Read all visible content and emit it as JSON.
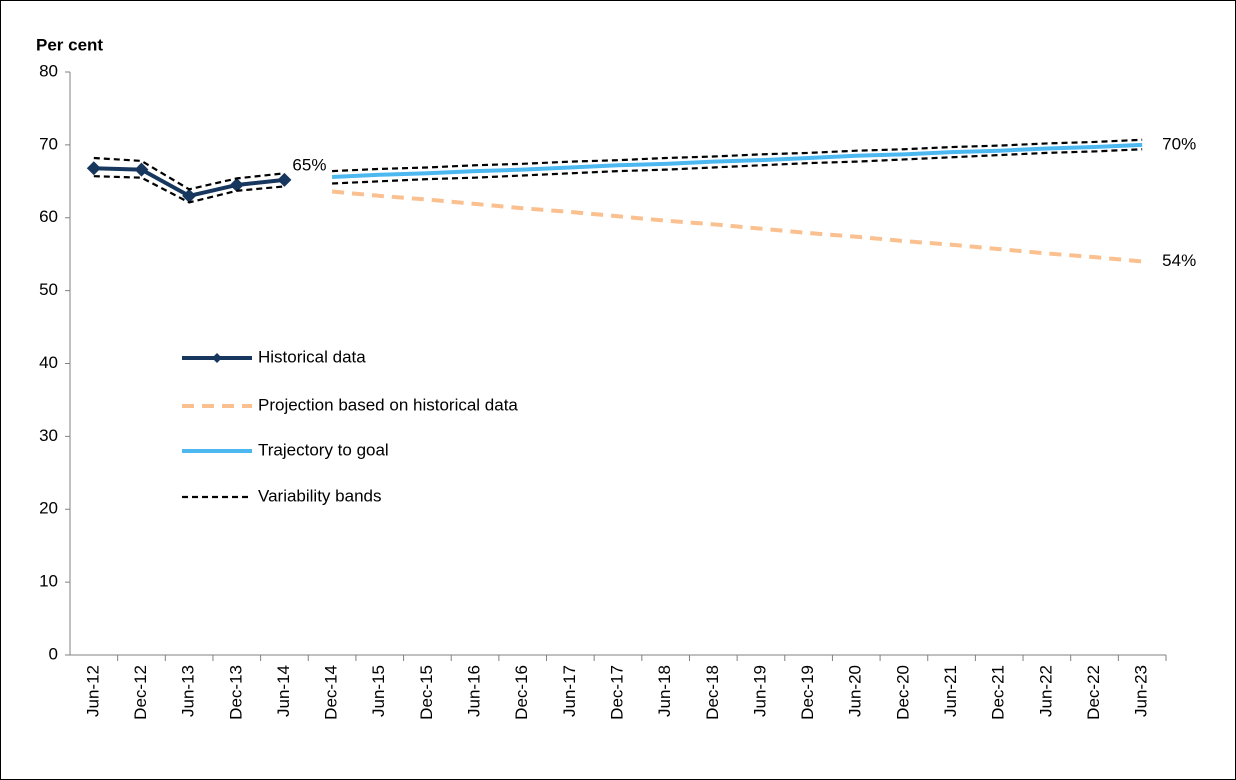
{
  "chart_data": {
    "type": "line",
    "y_label": "Per cent",
    "categories": [
      "Jun-12",
      "Dec-12",
      "Jun-13",
      "Dec-13",
      "Jun-14",
      "Dec-14",
      "Jun-15",
      "Dec-15",
      "Jun-16",
      "Dec-16",
      "Jun-17",
      "Dec-17",
      "Jun-18",
      "Dec-18",
      "Jun-19",
      "Dec-19",
      "Jun-20",
      "Dec-20",
      "Jun-21",
      "Dec-21",
      "Jun-22",
      "Dec-22",
      "Jun-23"
    ],
    "ylim": [
      0,
      80
    ],
    "yticks": [
      0,
      10,
      20,
      30,
      40,
      50,
      60,
      70,
      80
    ],
    "grid": false,
    "series": [
      {
        "name": "Historical data",
        "color": "#17375e",
        "style": "solid",
        "marker": "diamond",
        "values": [
          66.8,
          66.6,
          63.0,
          64.5,
          65.2,
          null,
          null,
          null,
          null,
          null,
          null,
          null,
          null,
          null,
          null,
          null,
          null,
          null,
          null,
          null,
          null,
          null,
          null
        ],
        "value_labels": [
          null,
          null,
          null,
          null,
          "65%",
          null,
          null,
          null,
          null,
          null,
          null,
          null,
          null,
          null,
          null,
          null,
          null,
          null,
          null,
          null,
          null,
          null,
          null
        ]
      },
      {
        "name": "Projection based on historical data",
        "color": "#fac08f",
        "style": "dash",
        "values": [
          null,
          null,
          null,
          null,
          null,
          63.6,
          63.0,
          62.5,
          61.9,
          61.3,
          60.8,
          60.2,
          59.6,
          59.1,
          58.5,
          57.9,
          57.4,
          56.8,
          56.3,
          55.7,
          55.1,
          54.6,
          54.0
        ],
        "value_labels": [
          null,
          null,
          null,
          null,
          null,
          null,
          null,
          null,
          null,
          null,
          null,
          null,
          null,
          null,
          null,
          null,
          null,
          null,
          null,
          null,
          null,
          null,
          "54%"
        ]
      },
      {
        "name": "Trajectory to goal",
        "color": "#4db8f0",
        "style": "solid",
        "values": [
          null,
          null,
          null,
          null,
          null,
          65.6,
          65.9,
          66.1,
          66.4,
          66.6,
          66.9,
          67.2,
          67.4,
          67.7,
          67.9,
          68.2,
          68.5,
          68.7,
          69.0,
          69.2,
          69.5,
          69.7,
          70.0
        ],
        "value_labels": [
          null,
          null,
          null,
          null,
          null,
          null,
          null,
          null,
          null,
          null,
          null,
          null,
          null,
          null,
          null,
          null,
          null,
          null,
          null,
          null,
          null,
          null,
          "70%"
        ]
      },
      {
        "name": "Variability bands",
        "color": "#000000",
        "style": "band",
        "lines": [
          [
            68.2,
            67.8,
            63.9,
            65.4,
            66.1,
            null,
            null,
            null,
            null,
            null,
            null,
            null,
            null,
            null,
            null,
            null,
            null,
            null,
            null,
            null,
            null,
            null,
            null
          ],
          [
            65.7,
            65.5,
            62.1,
            63.7,
            64.3,
            null,
            null,
            null,
            null,
            null,
            null,
            null,
            null,
            null,
            null,
            null,
            null,
            null,
            null,
            null,
            null,
            null,
            null
          ],
          [
            null,
            null,
            null,
            null,
            null,
            66.4,
            66.7,
            66.9,
            67.2,
            67.4,
            67.7,
            67.9,
            68.2,
            68.4,
            68.7,
            68.9,
            69.2,
            69.4,
            69.7,
            69.9,
            70.2,
            70.4,
            70.7
          ],
          [
            null,
            null,
            null,
            null,
            null,
            64.7,
            65.0,
            65.3,
            65.5,
            65.8,
            66.1,
            66.4,
            66.6,
            66.9,
            67.2,
            67.5,
            67.7,
            68.0,
            68.3,
            68.6,
            68.9,
            69.1,
            69.4
          ]
        ]
      }
    ]
  }
}
